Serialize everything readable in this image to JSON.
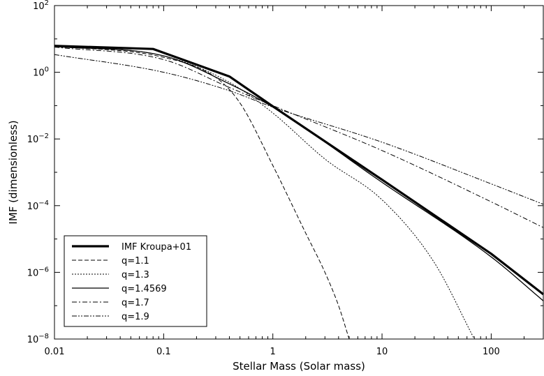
{
  "chart_data": {
    "type": "line",
    "xlabel": "Stellar Mass (Solar mass)",
    "ylabel": "IMF (dimensionless)",
    "xscale": "log",
    "yscale": "log",
    "xlim": [
      0.01,
      300
    ],
    "ylim": [
      1e-08,
      100
    ],
    "xticks": [
      {
        "value": 0.01,
        "label": "0.01"
      },
      {
        "value": 0.1,
        "label": "0.1"
      },
      {
        "value": 1,
        "label": "1"
      },
      {
        "value": 10,
        "label": "10"
      },
      {
        "value": 100,
        "label": "100"
      }
    ],
    "yticks": [
      {
        "value": 1e-08,
        "base": "10",
        "exp": "−8"
      },
      {
        "value": 1e-06,
        "base": "10",
        "exp": "−6"
      },
      {
        "value": 0.0001,
        "base": "10",
        "exp": "−4"
      },
      {
        "value": 0.01,
        "base": "10",
        "exp": "−2"
      },
      {
        "value": 1,
        "base": "10",
        "exp": "0"
      },
      {
        "value": 100,
        "base": "10",
        "exp": "2"
      }
    ],
    "grid": false,
    "legend_position": "bottom-left",
    "series": [
      {
        "name": "IMF Kroupa+01",
        "style": "thick-solid",
        "points": [
          [
            0.01,
            6.2
          ],
          [
            0.08,
            5.0
          ],
          [
            0.4,
            0.75
          ],
          [
            1.0,
            0.095
          ],
          [
            10,
            0.0006
          ],
          [
            100,
            3.6e-06
          ],
          [
            300,
            2.2e-07
          ]
        ]
      },
      {
        "name": "q=1.1",
        "style": "dashed",
        "points": [
          [
            0.01,
            6.1
          ],
          [
            0.1,
            2.8
          ],
          [
            0.3,
            0.7
          ],
          [
            0.5,
            0.12
          ],
          [
            1.0,
            0.0016
          ],
          [
            2.0,
            1.5e-05
          ],
          [
            3.0,
            1e-06
          ],
          [
            4.0,
            1e-07
          ],
          [
            5.0,
            1e-08
          ]
        ]
      },
      {
        "name": "q=1.3",
        "style": "dotted",
        "points": [
          [
            0.01,
            6.0
          ],
          [
            0.1,
            3.1
          ],
          [
            0.4,
            0.5
          ],
          [
            1.0,
            0.06
          ],
          [
            3.0,
            0.0025
          ],
          [
            10,
            0.00015
          ],
          [
            30,
            2e-06
          ],
          [
            70,
            1e-08
          ]
        ]
      },
      {
        "name": "q=1.4569",
        "style": "solid",
        "points": [
          [
            0.01,
            5.9
          ],
          [
            0.1,
            3.1
          ],
          [
            0.4,
            0.45
          ],
          [
            1.0,
            0.09
          ],
          [
            10,
            0.0005
          ],
          [
            100,
            2.9e-06
          ],
          [
            300,
            1.4e-07
          ]
        ]
      },
      {
        "name": "q=1.7",
        "style": "dash-dot",
        "points": [
          [
            0.01,
            5.7
          ],
          [
            0.1,
            2.4
          ],
          [
            0.4,
            0.35
          ],
          [
            1.0,
            0.1
          ],
          [
            10,
            0.0045
          ],
          [
            100,
            0.00013
          ],
          [
            300,
            2.2e-05
          ]
        ]
      },
      {
        "name": "q=1.9",
        "style": "dash-dot-dot",
        "points": [
          [
            0.01,
            3.4
          ],
          [
            0.1,
            1.0
          ],
          [
            0.4,
            0.28
          ],
          [
            1.0,
            0.09
          ],
          [
            10,
            0.008
          ],
          [
            100,
            0.00045
          ],
          [
            300,
            0.00011
          ]
        ]
      }
    ]
  }
}
